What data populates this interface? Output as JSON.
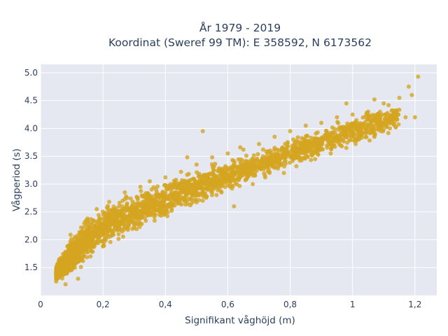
{
  "chart_data": {
    "type": "scatter",
    "title_line1": "År 1979 - 2019",
    "title_line2": "Koordinat (Sweref 99 TM): E 358592, N 6173562",
    "xlabel": "Signifikant våghöjd (m)",
    "ylabel": "Vågperiod (s)",
    "xlim": [
      0,
      1.27
    ],
    "ylim": [
      1.0,
      5.15
    ],
    "x_ticks": [
      0,
      0.2,
      0.4,
      0.6,
      0.8,
      1.0,
      1.2
    ],
    "x_tick_labels": [
      "0",
      "0,2",
      "0,4",
      "0,6",
      "0,8",
      "1",
      "1,2"
    ],
    "y_ticks": [
      1.5,
      2.0,
      2.5,
      3.0,
      3.5,
      4.0,
      4.5,
      5.0
    ],
    "y_tick_labels": [
      "1.5",
      "2.0",
      "2.5",
      "3.0",
      "3.5",
      "4.0",
      "4.5",
      "5.0"
    ],
    "grid": true,
    "legend": "none",
    "colors": {
      "marker": "#d4a520",
      "plot_bg": "#e5e7f1",
      "grid": "#ffffff",
      "text": "#2a3f5f"
    },
    "trend": {
      "x": [
        0.05,
        0.1,
        0.15,
        0.2,
        0.3,
        0.4,
        0.5,
        0.6,
        0.7,
        0.8,
        0.9,
        1.0,
        1.1,
        1.2
      ],
      "y_center": [
        1.4,
        1.75,
        2.0,
        2.2,
        2.5,
        2.72,
        2.95,
        3.15,
        3.35,
        3.55,
        3.75,
        3.95,
        4.15,
        4.4
      ],
      "y_spread": [
        0.15,
        0.45,
        0.45,
        0.42,
        0.4,
        0.38,
        0.35,
        0.32,
        0.3,
        0.3,
        0.3,
        0.3,
        0.3,
        0.3
      ]
    },
    "points": [
      [
        0.05,
        1.25
      ],
      [
        0.06,
        1.48
      ],
      [
        0.07,
        1.55
      ],
      [
        0.08,
        1.2
      ],
      [
        0.09,
        1.62
      ],
      [
        0.1,
        1.9
      ],
      [
        0.11,
        2.05
      ],
      [
        0.12,
        1.3
      ],
      [
        0.13,
        2.22
      ],
      [
        0.15,
        2.38
      ],
      [
        0.16,
        1.7
      ],
      [
        0.18,
        2.55
      ],
      [
        0.2,
        1.88
      ],
      [
        0.22,
        2.68
      ],
      [
        0.25,
        2.1
      ],
      [
        0.27,
        2.85
      ],
      [
        0.3,
        2.3
      ],
      [
        0.32,
        2.95
      ],
      [
        0.35,
        3.05
      ],
      [
        0.38,
        2.45
      ],
      [
        0.4,
        3.12
      ],
      [
        0.42,
        2.55
      ],
      [
        0.45,
        3.22
      ],
      [
        0.48,
        2.62
      ],
      [
        0.5,
        3.35
      ],
      [
        0.52,
        2.7
      ],
      [
        0.55,
        3.48
      ],
      [
        0.58,
        2.85
      ],
      [
        0.6,
        3.55
      ],
      [
        0.62,
        2.6
      ],
      [
        0.65,
        3.62
      ],
      [
        0.68,
        3.0
      ],
      [
        0.7,
        3.72
      ],
      [
        0.72,
        3.12
      ],
      [
        0.75,
        3.85
      ],
      [
        0.78,
        3.2
      ],
      [
        0.8,
        3.95
      ],
      [
        0.82,
        3.32
      ],
      [
        0.85,
        4.05
      ],
      [
        0.88,
        3.45
      ],
      [
        0.9,
        4.1
      ],
      [
        0.93,
        3.55
      ],
      [
        0.95,
        4.2
      ],
      [
        0.98,
        3.65
      ],
      [
        1.0,
        4.25
      ],
      [
        1.02,
        3.8
      ],
      [
        1.05,
        4.3
      ],
      [
        1.07,
        3.9
      ],
      [
        1.1,
        4.45
      ],
      [
        1.12,
        4.0
      ],
      [
        1.15,
        4.55
      ],
      [
        1.17,
        4.2
      ],
      [
        1.19,
        4.6
      ],
      [
        1.2,
        4.2
      ],
      [
        1.21,
        4.93
      ],
      [
        1.18,
        4.75
      ],
      [
        0.81,
        3.8
      ],
      [
        0.52,
        3.95
      ],
      [
        0.47,
        3.48
      ],
      [
        0.64,
        3.66
      ],
      [
        0.98,
        4.45
      ],
      [
        1.07,
        4.52
      ]
    ]
  }
}
